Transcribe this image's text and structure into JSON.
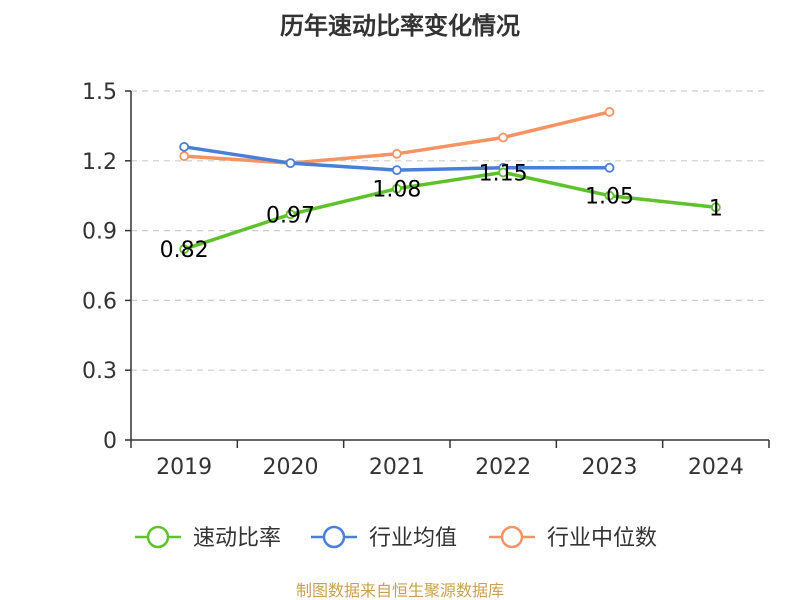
{
  "chart_data": {
    "type": "line",
    "title": "历年速动比率变化情况",
    "categories": [
      "2019",
      "2020",
      "2021",
      "2022",
      "2023",
      "2024"
    ],
    "ylim": [
      0,
      1.5
    ],
    "yticks": [
      "0",
      "0.3",
      "0.6",
      "0.9",
      "1.2",
      "1.5"
    ],
    "grid": true,
    "legend_position": "bottom",
    "series": [
      {
        "name": "速动比率",
        "color": "#5ec22d",
        "values": [
          0.82,
          0.97,
          1.08,
          1.15,
          1.05,
          1.0
        ],
        "labels": [
          "0.82",
          "0.97",
          "1.08",
          "1.15",
          "1.05",
          "1"
        ]
      },
      {
        "name": "行业均值",
        "color": "#4a7fd8",
        "values": [
          1.26,
          1.19,
          1.16,
          1.17,
          1.17,
          null
        ]
      },
      {
        "name": "行业中位数",
        "color": "#f59363",
        "values": [
          1.22,
          1.19,
          1.23,
          1.3,
          1.41,
          null
        ]
      }
    ],
    "source": "制图数据来自恒生聚源数据库",
    "source_color": "#c8a150"
  }
}
